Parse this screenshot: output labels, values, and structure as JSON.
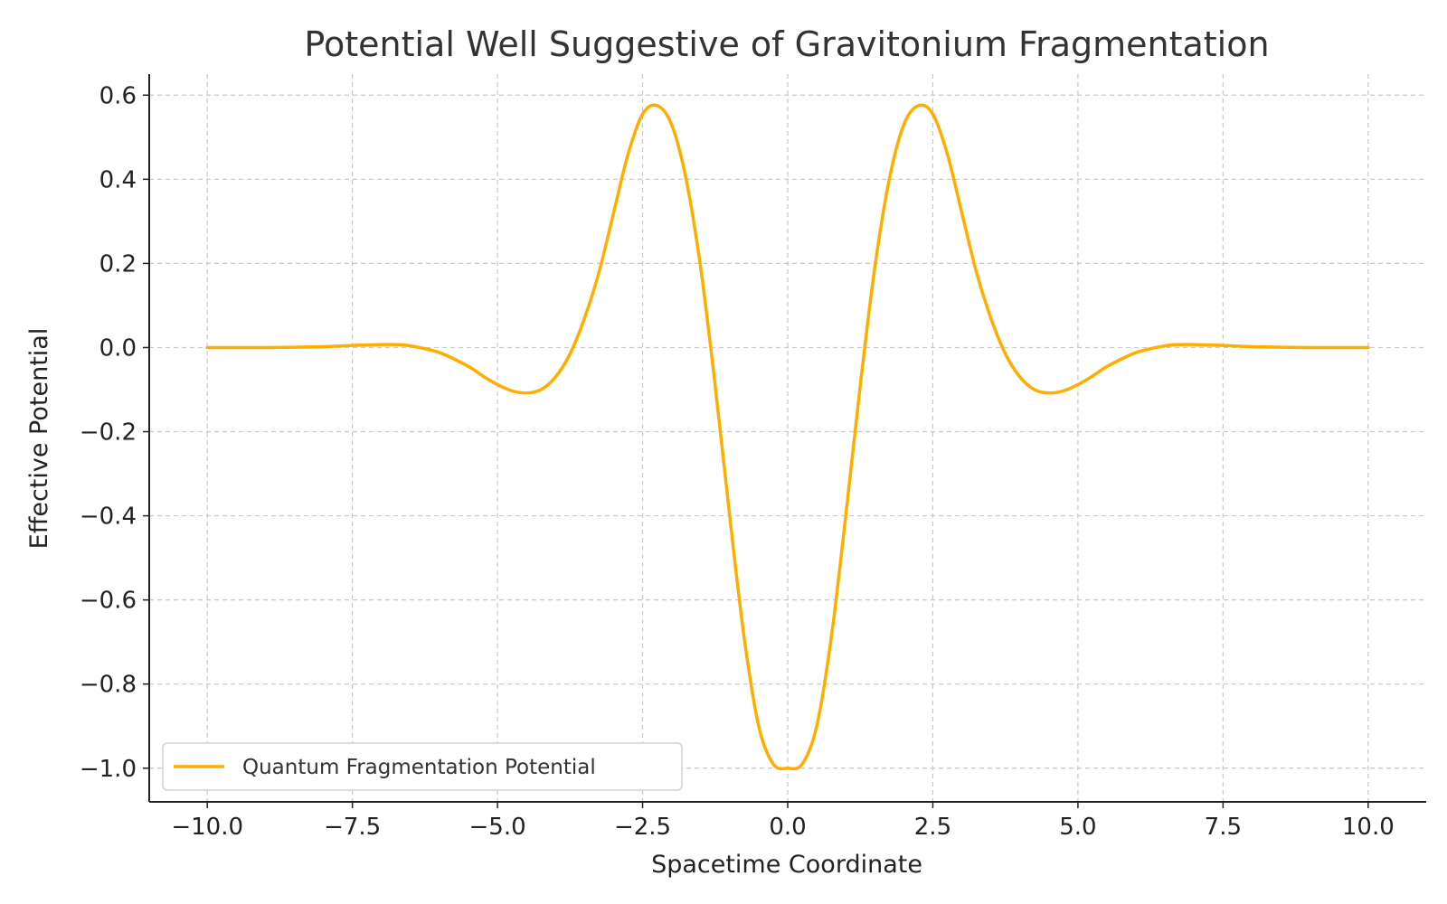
{
  "chart_data": {
    "type": "line",
    "title": "Potential Well Suggestive of Gravitonium Fragmentation",
    "xlabel": "Spacetime Coordinate",
    "ylabel": "Effective Potential",
    "xlim": [
      -11,
      11
    ],
    "ylim": [
      -1.08,
      0.65
    ],
    "x_ticks": [
      -10.0,
      -7.5,
      -5.0,
      -2.5,
      0.0,
      2.5,
      5.0,
      7.5,
      10.0
    ],
    "x_tick_labels": [
      "−10.0",
      "−7.5",
      "−5.0",
      "−2.5",
      "0.0",
      "2.5",
      "5.0",
      "7.5",
      "10.0"
    ],
    "y_ticks": [
      0.6,
      0.4,
      0.2,
      0.0,
      -0.2,
      -0.4,
      -0.6,
      -0.8,
      -1.0
    ],
    "y_tick_labels": [
      "0.6",
      "0.4",
      "0.2",
      "0.0",
      "−0.2",
      "−0.4",
      "−0.6",
      "−0.8",
      "−1.0"
    ],
    "grid": true,
    "legend_position": "lower-left",
    "series": [
      {
        "name": "Quantum Fragmentation Potential",
        "color": "#ffae00",
        "x": [
          -10.0,
          -9.5,
          -9.0,
          -8.5,
          -8.0,
          -7.5,
          -7.0,
          -6.75,
          -6.5,
          -6.0,
          -5.5,
          -5.25,
          -5.0,
          -4.75,
          -4.5,
          -4.25,
          -4.0,
          -3.75,
          -3.5,
          -3.25,
          -3.0,
          -2.75,
          -2.5,
          -2.25,
          -2.0,
          -1.75,
          -1.5,
          -1.25,
          -1.0,
          -0.75,
          -0.5,
          -0.25,
          0.0,
          0.25,
          0.5,
          0.75,
          1.0,
          1.25,
          1.5,
          1.75,
          2.0,
          2.25,
          2.5,
          2.75,
          3.0,
          3.25,
          3.5,
          3.75,
          4.0,
          4.25,
          4.5,
          4.75,
          5.0,
          5.25,
          5.5,
          6.0,
          6.5,
          6.75,
          7.0,
          7.5,
          8.0,
          8.5,
          9.0,
          9.5,
          10.0
        ],
        "y": [
          0.0,
          0.0,
          0.0,
          0.0008,
          0.002,
          0.005,
          0.007,
          0.007,
          0.004,
          -0.012,
          -0.045,
          -0.068,
          -0.088,
          -0.103,
          -0.108,
          -0.1,
          -0.07,
          -0.015,
          0.07,
          0.18,
          0.32,
          0.46,
          0.555,
          0.575,
          0.53,
          0.4,
          0.19,
          -0.09,
          -0.4,
          -0.69,
          -0.9,
          -0.99,
          -1.0,
          -0.99,
          -0.9,
          -0.69,
          -0.4,
          -0.09,
          0.19,
          0.4,
          0.53,
          0.575,
          0.555,
          0.46,
          0.32,
          0.18,
          0.07,
          -0.015,
          -0.07,
          -0.1,
          -0.108,
          -0.103,
          -0.088,
          -0.068,
          -0.045,
          -0.012,
          0.004,
          0.007,
          0.007,
          0.005,
          0.002,
          0.0008,
          0.0,
          0.0,
          0.0
        ]
      }
    ]
  }
}
